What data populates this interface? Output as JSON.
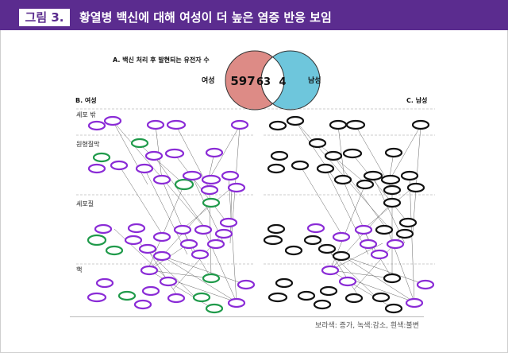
{
  "header": {
    "figure_tag": "그림 3.",
    "title": "황열병 백신에 대해 여성이 더 높은 염증 반응 보임"
  },
  "panel_a": {
    "caption": "A. 백신 처리 후 발현되는 유전자 수",
    "female_label": "여성",
    "male_label": "남성",
    "female_only": "597",
    "shared": "63",
    "male_only": "4",
    "colors": {
      "female": "#dd8b86",
      "male": "#6ec6dc"
    }
  },
  "panel_b": {
    "caption": "B. 여성"
  },
  "panel_c": {
    "caption": "C. 남성"
  },
  "compartments": [
    "세포 밖",
    "원형질막",
    "세포질",
    "핵"
  ],
  "legend_note": "보라색: 증가, 녹색:감소, 흰색:불변",
  "colors": {
    "up": "#8a2bd6",
    "down": "#1f9a4a",
    "unchanged": "#111111",
    "header": "#5b2c8f"
  }
}
